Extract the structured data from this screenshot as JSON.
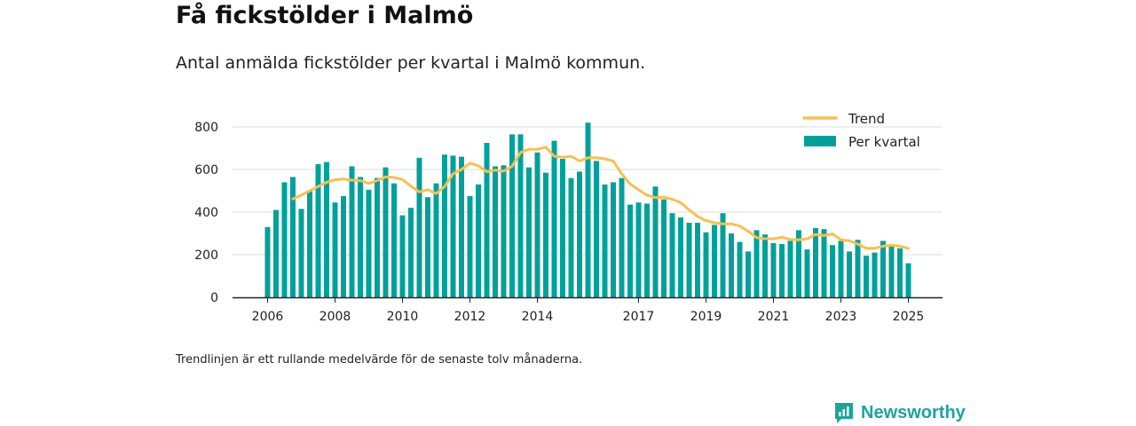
{
  "header": {
    "title": "Få fickstölder i Malmö",
    "subtitle": "Antal anmälda fickstölder per kvartal i Malmö kommun."
  },
  "footer": {
    "note": "Trendlinjen är ett rullande medelvärde för de senaste tolv månaderna.",
    "brand": "Newsworthy"
  },
  "colors": {
    "bar": "#00a19a",
    "trend": "#f9c04d",
    "axis": "#222222",
    "grid": "#dddddd",
    "brand": "#1aa59a"
  },
  "chart_data": {
    "type": "bar",
    "title": "Få fickstölder i Malmö",
    "subtitle": "Antal anmälda fickstölder per kvartal i Malmö kommun.",
    "xlabel": "",
    "ylabel": "",
    "ylim": [
      0,
      800
    ],
    "yticks": [
      0,
      200,
      400,
      600,
      800
    ],
    "xticks": [
      {
        "label": "2006",
        "index": 0
      },
      {
        "label": "2008",
        "index": 8
      },
      {
        "label": "2010",
        "index": 16
      },
      {
        "label": "2012",
        "index": 24
      },
      {
        "label": "2014",
        "index": 32
      },
      {
        "label": "2017",
        "index": 44
      },
      {
        "label": "2019",
        "index": 52
      },
      {
        "label": "2021",
        "index": 60
      },
      {
        "label": "2023",
        "index": 68
      },
      {
        "label": "2025",
        "index": 76
      }
    ],
    "grid": true,
    "legend_position": "top-right",
    "categories": [
      "2006 Q1",
      "2006 Q2",
      "2006 Q3",
      "2006 Q4",
      "2007 Q1",
      "2007 Q2",
      "2007 Q3",
      "2007 Q4",
      "2008 Q1",
      "2008 Q2",
      "2008 Q3",
      "2008 Q4",
      "2009 Q1",
      "2009 Q2",
      "2009 Q3",
      "2009 Q4",
      "2010 Q1",
      "2010 Q2",
      "2010 Q3",
      "2010 Q4",
      "2011 Q1",
      "2011 Q2",
      "2011 Q3",
      "2011 Q4",
      "2012 Q1",
      "2012 Q2",
      "2012 Q3",
      "2012 Q4",
      "2013 Q1",
      "2013 Q2",
      "2013 Q3",
      "2013 Q4",
      "2014 Q1",
      "2014 Q2",
      "2014 Q3",
      "2014 Q4",
      "2015 Q1",
      "2015 Q2",
      "2015 Q3",
      "2015 Q4",
      "2016 Q1",
      "2016 Q2",
      "2016 Q3",
      "2016 Q4",
      "2017 Q1",
      "2017 Q2",
      "2017 Q3",
      "2017 Q4",
      "2018 Q1",
      "2018 Q2",
      "2018 Q3",
      "2018 Q4",
      "2019 Q1",
      "2019 Q2",
      "2019 Q3",
      "2019 Q4",
      "2020 Q1",
      "2020 Q2",
      "2020 Q3",
      "2020 Q4",
      "2021 Q1",
      "2021 Q2",
      "2021 Q3",
      "2021 Q4",
      "2022 Q1",
      "2022 Q2",
      "2022 Q3",
      "2022 Q4",
      "2023 Q1",
      "2023 Q2",
      "2023 Q3",
      "2023 Q4",
      "2024 Q1",
      "2024 Q2",
      "2024 Q3",
      "2024 Q4",
      "2025 Q1"
    ],
    "series": [
      {
        "name": "Per kvartal",
        "kind": "bar",
        "values": [
          330,
          410,
          540,
          565,
          415,
          500,
          625,
          635,
          445,
          475,
          615,
          565,
          505,
          560,
          610,
          535,
          385,
          420,
          655,
          470,
          535,
          670,
          665,
          660,
          475,
          530,
          725,
          615,
          620,
          765,
          765,
          610,
          680,
          585,
          735,
          650,
          560,
          590,
          820,
          640,
          530,
          540,
          560,
          435,
          445,
          440,
          520,
          460,
          395,
          375,
          350,
          350,
          305,
          340,
          395,
          300,
          260,
          215,
          315,
          295,
          255,
          250,
          265,
          315,
          225,
          325,
          320,
          245,
          265,
          215,
          270,
          195,
          210,
          265,
          240,
          230,
          160
        ]
      },
      {
        "name": "Trend",
        "kind": "line",
        "values": [
          null,
          null,
          null,
          462,
          480,
          500,
          520,
          540,
          552,
          555,
          550,
          548,
          535,
          548,
          565,
          563,
          553,
          522,
          495,
          505,
          487,
          520,
          580,
          600,
          630,
          618,
          590,
          597,
          593,
          615,
          680,
          695,
          695,
          705,
          662,
          658,
          662,
          640,
          655,
          655,
          650,
          640,
          580,
          532,
          505,
          480,
          468,
          470,
          460,
          445,
          410,
          380,
          360,
          350,
          345,
          345,
          335,
          310,
          280,
          275,
          275,
          282,
          272,
          270,
          275,
          295,
          290,
          298,
          270,
          265,
          250,
          230,
          230,
          240,
          245,
          240,
          230
        ]
      }
    ]
  }
}
